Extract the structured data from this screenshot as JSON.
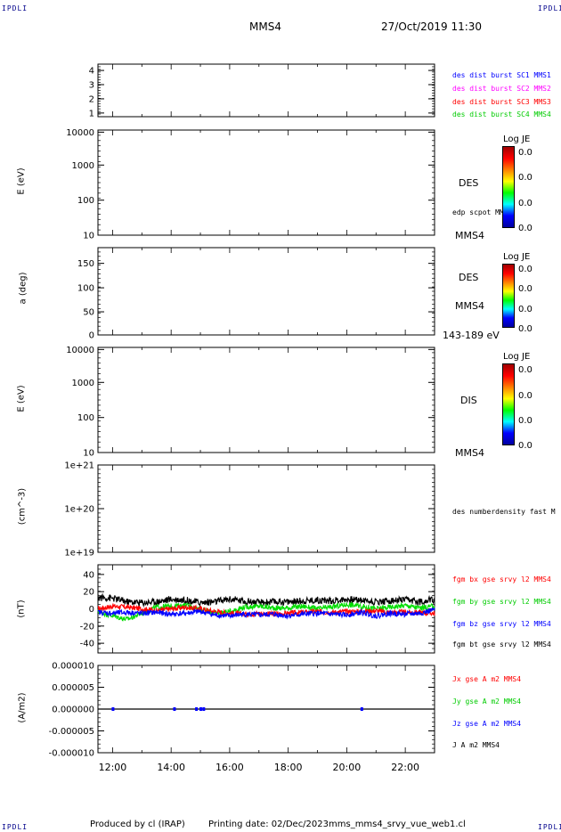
{
  "corners": {
    "top_left": "IPDLI",
    "top_right": "IPDLI",
    "bottom_left": "IPDLI",
    "bottom_right": "IPDLI"
  },
  "header": {
    "title": "MMS4",
    "datetime": "27/Oct/2019 11:30"
  },
  "footer": {
    "produced_by": "Produced by cl (IRAP)",
    "printing_date": "Printing date: 02/Dec/2023",
    "file": "mms_mms4_srvy_vue_web1.cl"
  },
  "colors": {
    "mms1": "#0000ff",
    "mms2": "#ff00ff",
    "mms3": "#ff0000",
    "mms4": "#00cc00",
    "bx": "#ff0000",
    "by": "#00dd00",
    "bz": "#0000ff",
    "bt": "#000000"
  },
  "panel1": {
    "legend": [
      "des dist burst SC1 MMS1",
      "des dist burst SC2 MMS2",
      "des dist burst SC3 MMS3",
      "des dist burst SC4 MMS4"
    ]
  },
  "panel2": {
    "ylabel": "E (eV)",
    "side_label": "DES",
    "side_sub": "edp scpot MMS4",
    "side_bottom": "MMS4",
    "colorbar_title": "Log JE",
    "colorbar_values": [
      "0.0",
      "0.0",
      "0.0",
      "0.0"
    ]
  },
  "panel3": {
    "ylabel": "a (deg)",
    "side_label": "DES",
    "side_sub": "MMS4",
    "side_bottom": "143-189 eV",
    "colorbar_title": "Log JE",
    "colorbar_values": [
      "0.0",
      "0.0",
      "0.0",
      "0.0"
    ]
  },
  "panel4": {
    "ylabel": "E (eV)",
    "side_label": "DIS",
    "side_bottom": "MMS4",
    "colorbar_title": "Log JE",
    "colorbar_values": [
      "0.0",
      "0.0",
      "0.0",
      "0.0"
    ]
  },
  "panel5": {
    "ylabel": "(cm^-3)",
    "legend": "des numberdensity fast M"
  },
  "panel6": {
    "ylabel": "(nT)",
    "legend": [
      "fgm bx gse srvy l2 MMS4",
      "fgm by gse srvy l2 MMS4",
      "fgm bz gse srvy l2 MMS4",
      "fgm bt gse srvy l2 MMS4"
    ]
  },
  "panel7": {
    "ylabel": "(A/m2)",
    "legend": [
      "Jx gse A m2 MMS4",
      "Jy gse A m2 MMS4",
      "Jz gse A m2 MMS4",
      "J A m2 MMS4"
    ]
  },
  "chart_data": [
    {
      "type": "line",
      "panel": "spacecraft index",
      "ylim": [
        0.5,
        4.5
      ],
      "y_ticks": [
        "1",
        "2",
        "3",
        "4"
      ],
      "series": []
    },
    {
      "type": "heatmap",
      "panel": "DES energy spectrogram",
      "ylabel": "E (eV)",
      "log_y": true,
      "ylim": [
        10,
        20000
      ],
      "y_ticks": [
        "10",
        "100",
        "1000",
        "10000"
      ],
      "series": []
    },
    {
      "type": "heatmap",
      "panel": "DES pitch angle",
      "ylabel": "a (deg)",
      "ylim": [
        0,
        180
      ],
      "y_ticks": [
        "0",
        "50",
        "100",
        "150"
      ],
      "series": []
    },
    {
      "type": "heatmap",
      "panel": "DIS energy spectrogram",
      "ylabel": "E (eV)",
      "log_y": true,
      "ylim": [
        10,
        20000
      ],
      "y_ticks": [
        "10",
        "100",
        "1000",
        "10000"
      ],
      "series": []
    },
    {
      "type": "line",
      "panel": "density",
      "ylabel": "(cm^-3)",
      "log_y": true,
      "ylim": [
        1e+19,
        1e+21
      ],
      "y_ticks": [
        "1e+19",
        "1e+20",
        "1e+21"
      ],
      "series": []
    },
    {
      "type": "line",
      "panel": "magnetic field",
      "ylabel": "(nT)",
      "ylim": [
        -50,
        50
      ],
      "y_ticks": [
        "-40",
        "-20",
        "0",
        "20",
        "40"
      ],
      "x": [
        11.5,
        12,
        12.5,
        13,
        13.5,
        14,
        14.5,
        15,
        15.5,
        16,
        16.5,
        17,
        17.5,
        18,
        18.5,
        19,
        19.5,
        20,
        20.5,
        21,
        21.5,
        22,
        22.5,
        23
      ],
      "series": [
        {
          "name": "fgm bx gse srvy l2 MMS4",
          "values": [
            0,
            3,
            2,
            0,
            -2,
            0,
            2,
            0,
            -3,
            -5,
            -6,
            -5,
            -6,
            -5,
            -4,
            -3,
            -4,
            -3,
            -3,
            -2,
            -4,
            -4,
            -4,
            -5
          ]
        },
        {
          "name": "fgm by gse srvy l2 MMS4",
          "values": [
            -3,
            -8,
            -12,
            -5,
            2,
            3,
            4,
            0,
            -5,
            -3,
            2,
            3,
            1,
            1,
            3,
            0,
            2,
            5,
            3,
            0,
            2,
            4,
            1,
            3
          ]
        },
        {
          "name": "fgm bz gse srvy l2 MMS4",
          "values": [
            -4,
            -5,
            -4,
            -5,
            -4,
            -6,
            -5,
            -3,
            -7,
            -8,
            -6,
            -7,
            -6,
            -8,
            -6,
            -5,
            -6,
            -7,
            -4,
            -8,
            -5,
            -6,
            -5,
            -1
          ]
        },
        {
          "name": "fgm bt gse srvy l2 MMS4",
          "values": [
            13,
            12,
            8,
            7,
            8,
            11,
            10,
            7,
            8,
            11,
            9,
            7,
            8,
            8,
            9,
            10,
            9,
            11,
            10,
            8,
            9,
            10,
            8,
            11
          ]
        }
      ]
    },
    {
      "type": "line",
      "panel": "current density",
      "ylabel": "(A/m2)",
      "ylim": [
        -1e-05,
        1e-05
      ],
      "y_ticks": [
        "-0.000010",
        "-0.000005",
        "0.000000",
        "0.000005",
        "0.000010"
      ],
      "x": [
        11.5,
        23
      ],
      "series": [
        {
          "name": "J A m2 MMS4",
          "values": [
            0,
            0
          ]
        }
      ]
    }
  ],
  "time_axis": {
    "xlim": [
      11.5,
      23
    ],
    "ticks": [
      "12:00",
      "14:00",
      "16:00",
      "18:00",
      "20:00",
      "22:00"
    ]
  }
}
